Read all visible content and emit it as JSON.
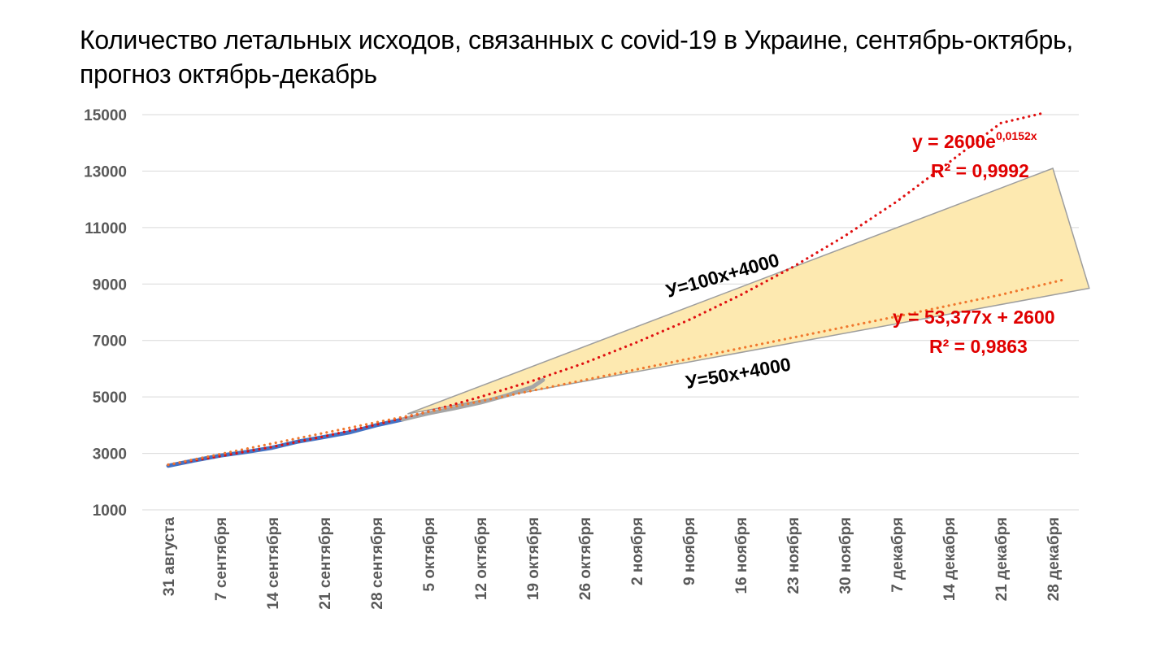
{
  "chart_data": {
    "type": "line",
    "title": "Количество летальных исходов, связанных с covid-19 в Украине, сентябрь-октябрь, прогноз октябрь-декабрь",
    "xlabel": "",
    "ylabel": "",
    "ylim": [
      1000,
      15000
    ],
    "yticks": [
      1000,
      3000,
      5000,
      7000,
      9000,
      11000,
      13000,
      15000
    ],
    "categories": [
      "31 августа",
      "7 сентября",
      "14 сентября",
      "21 сентября",
      "28 сентября",
      "5 октября",
      "12 октября",
      "19 октября",
      "26 октября",
      "2 ноября",
      "9 ноября",
      "16 ноября",
      "23 ноября",
      "30 ноября",
      "7 декабря",
      "14 декабря",
      "21 декабря",
      "28 декабря"
    ],
    "grid": true,
    "legend": "none",
    "series": [
      {
        "kind": "actual",
        "color": "#4472c4",
        "x": [
          0,
          0.5,
          1,
          1.5,
          2,
          2.5,
          3,
          3.5,
          4,
          4.5
        ],
        "values": [
          2560,
          2750,
          2920,
          3050,
          3200,
          3420,
          3580,
          3750,
          4000,
          4200
        ]
      },
      {
        "kind": "recent",
        "color": "#a6a6a6",
        "x": [
          4.5,
          5,
          5.5,
          6,
          6.5,
          7,
          7.2
        ],
        "values": [
          4200,
          4420,
          4600,
          4800,
          5050,
          5350,
          5600
        ]
      },
      {
        "kind": "exponential-trend",
        "color": "#e01010",
        "formula": "y = 2600e",
        "formula_exp": "0,0152x",
        "r2": "R² = 0,9992",
        "x": [
          0,
          1,
          2,
          3,
          4,
          5,
          6,
          7,
          8,
          9,
          10,
          11,
          12,
          13,
          14,
          15,
          16,
          16.8
        ],
        "values": [
          2600,
          2900,
          3230,
          3600,
          4020,
          4480,
          5000,
          5570,
          6200,
          6930,
          7720,
          8610,
          9600,
          10700,
          11920,
          13300,
          14700,
          15050
        ]
      },
      {
        "kind": "linear-trend",
        "color": "#f0782e",
        "formula": "y = 53,377x + 2600",
        "r2": "R² = 0,9863",
        "x": [
          0,
          2,
          4,
          6,
          8,
          10,
          12,
          14,
          16,
          17.2
        ],
        "values": [
          2600,
          3350,
          4100,
          4850,
          5600,
          6350,
          7100,
          7850,
          8620,
          9150
        ]
      }
    ],
    "scenario_band": {
      "upper_label": "У=100х+4000",
      "lower_label": "У=50х+4000",
      "fill": "#fde9b0",
      "stroke": "#9e9e9e",
      "vertices": [
        [
          4.6,
          4400
        ],
        [
          17.0,
          13100
        ],
        [
          17.7,
          8850
        ]
      ]
    }
  }
}
